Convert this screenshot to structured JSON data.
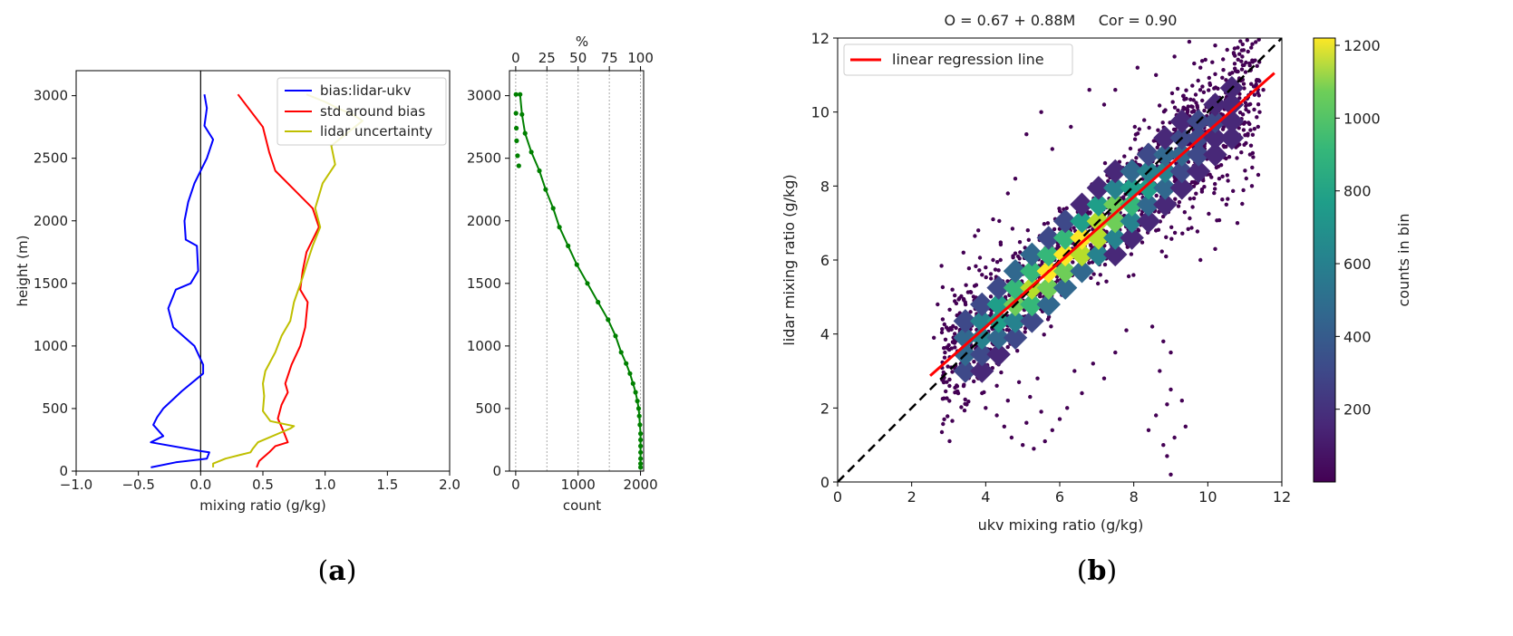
{
  "figure": {
    "panel_a_label": "a",
    "panel_b_label": "b"
  },
  "colors": {
    "bias": "#0000ff",
    "std": "#ff0000",
    "uncert": "#bfbf00",
    "count": "#008000",
    "regression": "#ff0000",
    "one_to_one": "#000000",
    "scatter": "#440154"
  },
  "chart_data": [
    {
      "id": "profile",
      "type": "line",
      "title": "",
      "xlabel": "mixing ratio (g/kg)",
      "ylabel": "height (m)",
      "xlim": [
        -1.0,
        2.0
      ],
      "ylim": [
        0,
        3200
      ],
      "xticks": [
        "−1.0",
        "−0.5",
        "0.0",
        "0.5",
        "1.0",
        "1.5",
        "2.0"
      ],
      "xtick_values": [
        -1.0,
        -0.5,
        0.0,
        0.5,
        1.0,
        1.5,
        2.0
      ],
      "yticks": [
        "0",
        "500",
        "1000",
        "1500",
        "2000",
        "2500",
        "3000"
      ],
      "ytick_values": [
        0,
        500,
        1000,
        1500,
        2000,
        2500,
        3000
      ],
      "legend_position": "top-right",
      "series": [
        {
          "name": "bias:lidar-ukv",
          "color": "#0000ff",
          "x": [
            -0.4,
            -0.2,
            0.05,
            0.07,
            0.0,
            -0.4,
            -0.3,
            -0.38,
            -0.35,
            -0.3,
            -0.15,
            0.02,
            0.02,
            -0.05,
            -0.22,
            -0.26,
            -0.2,
            -0.08,
            -0.02,
            -0.03,
            -0.12,
            -0.13,
            -0.1,
            -0.05,
            0.05,
            0.1,
            0.03,
            0.05,
            0.03
          ],
          "y": [
            30,
            70,
            100,
            150,
            160,
            230,
            280,
            370,
            430,
            500,
            640,
            780,
            850,
            1000,
            1150,
            1300,
            1450,
            1500,
            1600,
            1800,
            1850,
            2000,
            2150,
            2300,
            2500,
            2650,
            2760,
            2900,
            3010
          ]
        },
        {
          "name": "std around bias",
          "color": "#ff0000",
          "x": [
            0.45,
            0.47,
            0.55,
            0.6,
            0.7,
            0.66,
            0.62,
            0.65,
            0.7,
            0.68,
            0.73,
            0.8,
            0.84,
            0.86,
            0.8,
            0.82,
            0.85,
            0.95,
            0.9,
            0.75,
            0.6,
            0.55,
            0.5,
            0.3
          ],
          "y": [
            30,
            80,
            150,
            200,
            230,
            330,
            420,
            530,
            630,
            700,
            850,
            1000,
            1150,
            1350,
            1450,
            1600,
            1750,
            1950,
            2100,
            2250,
            2400,
            2550,
            2750,
            3010
          ]
        },
        {
          "name": "lidar uncertainty",
          "color": "#bfbf00",
          "x": [
            0.1,
            0.1,
            0.2,
            0.32,
            0.4,
            0.42,
            0.46,
            0.72,
            0.75,
            0.56,
            0.5,
            0.51,
            0.5,
            0.52,
            0.6,
            0.65,
            0.72,
            0.75,
            0.82,
            0.85,
            0.9,
            0.96,
            0.92,
            0.98,
            1.08,
            1.05,
            1.3,
            1.22,
            1.1,
            1.0,
            0.85
          ],
          "y": [
            30,
            60,
            100,
            130,
            150,
            180,
            230,
            340,
            360,
            400,
            480,
            600,
            700,
            800,
            950,
            1080,
            1200,
            1350,
            1550,
            1650,
            1800,
            1950,
            2100,
            2300,
            2450,
            2600,
            2800,
            2850,
            2900,
            2950,
            3010
          ]
        }
      ]
    },
    {
      "id": "count",
      "type": "line",
      "xlabel": "count",
      "top_xlabel": "%",
      "xlim": [
        -100,
        2050
      ],
      "ylim": [
        0,
        3200
      ],
      "xticks": [
        "0",
        "1000",
        "2000"
      ],
      "xtick_values": [
        0,
        1000,
        2000
      ],
      "yticks": [
        "0",
        "500",
        "1000",
        "1500",
        "2000",
        "2500",
        "3000"
      ],
      "ytick_values": [
        0,
        500,
        1000,
        1500,
        2000,
        2500,
        3000
      ],
      "top_ticks": [
        "0",
        "25",
        "50",
        "75",
        "100"
      ],
      "top_tick_values": [
        0,
        500,
        1000,
        1500,
        2000
      ],
      "series": [
        {
          "name": "count",
          "color": "#008000",
          "x": [
            2000,
            2000,
            2000,
            2000,
            2000,
            2000,
            2000,
            1990,
            1980,
            1970,
            1950,
            1920,
            1880,
            1830,
            1770,
            1690,
            1600,
            1480,
            1320,
            1150,
            980,
            840,
            700,
            600,
            480,
            380,
            250,
            150,
            100,
            70,
            50,
            30,
            15,
            10,
            5,
            5
          ],
          "y": [
            30,
            60,
            100,
            150,
            200,
            250,
            300,
            370,
            440,
            500,
            560,
            630,
            700,
            780,
            860,
            950,
            1080,
            1210,
            1350,
            1500,
            1650,
            1800,
            1950,
            2100,
            2250,
            2400,
            2550,
            2700,
            2850,
            3010,
            2440,
            2520,
            2640,
            2740,
            2860,
            3010
          ]
        }
      ]
    },
    {
      "id": "scatter",
      "type": "scatter",
      "title": "O = 0.67 + 0.88M     Cor = 0.90",
      "xlabel": "ukv mixing ratio (g/kg)",
      "ylabel": "lidar mixing ratio (g/kg)",
      "xlim": [
        0,
        12
      ],
      "ylim": [
        0,
        12
      ],
      "xticks": [
        "0",
        "2",
        "4",
        "6",
        "8",
        "10",
        "12"
      ],
      "xtick_values": [
        0,
        2,
        4,
        6,
        8,
        10,
        12
      ],
      "yticks": [
        "0",
        "2",
        "4",
        "6",
        "8",
        "10",
        "12"
      ],
      "ytick_values": [
        0,
        2,
        4,
        6,
        8,
        10,
        12
      ],
      "legend_position": "top-left",
      "legend_label": "linear regression line",
      "regression": {
        "intercept": 0.67,
        "slope": 0.88,
        "x_start": 2.5,
        "x_end": 11.8
      },
      "one_to_one": true,
      "colorbar": {
        "label": "counts in bin",
        "min": 0,
        "max": 1220,
        "ticks": [
          "200",
          "400",
          "600",
          "800",
          "1000",
          "1200"
        ],
        "tick_values": [
          200,
          400,
          600,
          800,
          1000,
          1200
        ]
      },
      "outlier_points": [
        [
          3.7,
          5.3
        ],
        [
          3.9,
          5.6
        ],
        [
          4.0,
          5.8
        ],
        [
          4.2,
          6.0
        ],
        [
          3.9,
          4.6
        ],
        [
          4.4,
          6.0
        ],
        [
          5.1,
          9.4
        ],
        [
          5.5,
          10.0
        ],
        [
          6.8,
          10.6
        ],
        [
          7.2,
          10.2
        ],
        [
          8.1,
          11.2
        ],
        [
          9.1,
          11.5
        ],
        [
          9.5,
          11.9
        ],
        [
          10.2,
          11.8
        ],
        [
          10.7,
          11.6
        ],
        [
          2.7,
          4.8
        ],
        [
          3.1,
          5.2
        ],
        [
          3.3,
          4.4
        ],
        [
          3.6,
          3.6
        ],
        [
          3.8,
          2.8
        ],
        [
          3.9,
          2.4
        ],
        [
          4.0,
          2.0
        ],
        [
          4.3,
          1.8
        ],
        [
          4.5,
          1.5
        ],
        [
          4.7,
          1.2
        ],
        [
          5.0,
          1.0
        ],
        [
          5.3,
          0.9
        ],
        [
          5.6,
          1.1
        ],
        [
          5.8,
          1.4
        ],
        [
          6.0,
          1.7
        ],
        [
          5.5,
          1.9
        ],
        [
          5.2,
          2.3
        ],
        [
          4.9,
          2.7
        ],
        [
          4.6,
          2.2
        ],
        [
          4.3,
          2.6
        ],
        [
          4.1,
          3.0
        ],
        [
          3.9,
          3.3
        ],
        [
          5.1,
          1.6
        ],
        [
          5.4,
          2.8
        ],
        [
          6.2,
          2.0
        ],
        [
          8.4,
          1.4
        ],
        [
          8.8,
          1.0
        ],
        [
          8.9,
          0.7
        ],
        [
          9.0,
          0.2
        ],
        [
          8.6,
          1.8
        ],
        [
          8.9,
          2.1
        ],
        [
          9.0,
          2.5
        ],
        [
          9.3,
          2.2
        ],
        [
          9.4,
          1.5
        ],
        [
          9.1,
          1.2
        ],
        [
          8.7,
          3.0
        ],
        [
          9.0,
          3.5
        ],
        [
          8.8,
          3.8
        ],
        [
          8.5,
          4.2
        ],
        [
          7.2,
          2.8
        ],
        [
          7.5,
          3.5
        ],
        [
          7.8,
          4.1
        ],
        [
          6.9,
          3.2
        ],
        [
          6.6,
          2.4
        ],
        [
          6.4,
          3.0
        ],
        [
          10.8,
          7.0
        ],
        [
          11.2,
          8.5
        ],
        [
          11.4,
          10.0
        ],
        [
          11.5,
          10.6
        ],
        [
          10.2,
          6.3
        ],
        [
          10.5,
          7.5
        ],
        [
          9.8,
          6.0
        ],
        [
          4.6,
          7.8
        ],
        [
          4.2,
          7.1
        ],
        [
          3.8,
          6.8
        ],
        [
          5.8,
          9.0
        ],
        [
          6.3,
          9.6
        ],
        [
          7.5,
          10.6
        ],
        [
          8.6,
          11.0
        ],
        [
          2.9,
          3.5
        ],
        [
          3.0,
          4.1
        ],
        [
          2.6,
          3.9
        ],
        [
          4.8,
          8.2
        ],
        [
          3.4,
          6.2
        ],
        [
          9.8,
          11.2
        ]
      ]
    }
  ]
}
